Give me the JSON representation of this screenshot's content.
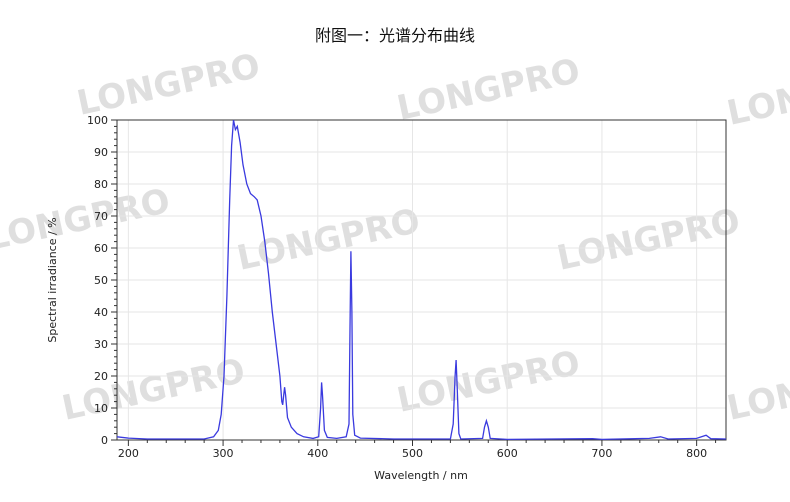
{
  "title": "附图一：光谱分布曲线",
  "watermark": "LONGPRO",
  "chart_data": {
    "type": "line",
    "title": "附图一：光谱分布曲线",
    "xlabel": "Wavelength / nm",
    "ylabel": "Spectral irradiance / %",
    "xlim": [
      188,
      831
    ],
    "ylim": [
      0,
      100
    ],
    "xticks": [
      200,
      300,
      400,
      500,
      600,
      700,
      800
    ],
    "yticks": [
      0,
      10,
      20,
      30,
      40,
      50,
      60,
      70,
      80,
      90,
      100
    ],
    "grid": true,
    "line_color": "#3a3adf",
    "series": [
      {
        "points": [
          [
            188,
            1
          ],
          [
            200,
            0.6
          ],
          [
            220,
            0.3
          ],
          [
            280,
            0.3
          ],
          [
            290,
            1
          ],
          [
            295,
            3
          ],
          [
            298,
            8
          ],
          [
            301,
            20
          ],
          [
            304,
            45
          ],
          [
            307,
            75
          ],
          [
            309,
            92
          ],
          [
            311,
            100
          ],
          [
            313,
            97
          ],
          [
            315,
            98
          ],
          [
            318,
            93
          ],
          [
            321,
            86
          ],
          [
            325,
            80
          ],
          [
            329,
            77
          ],
          [
            333,
            76
          ],
          [
            336,
            75
          ],
          [
            340,
            70
          ],
          [
            344,
            62
          ],
          [
            348,
            52
          ],
          [
            352,
            40
          ],
          [
            356,
            30
          ],
          [
            360,
            20
          ],
          [
            362,
            12
          ],
          [
            363,
            11
          ],
          [
            364,
            14
          ],
          [
            365,
            16.5
          ],
          [
            366,
            14
          ],
          [
            368,
            7
          ],
          [
            372,
            4
          ],
          [
            378,
            2
          ],
          [
            385,
            1
          ],
          [
            395,
            0.5
          ],
          [
            401,
            1
          ],
          [
            403,
            10
          ],
          [
            404,
            18
          ],
          [
            405,
            14
          ],
          [
            407,
            3
          ],
          [
            410,
            0.8
          ],
          [
            420,
            0.5
          ],
          [
            430,
            1
          ],
          [
            433,
            5
          ],
          [
            434,
            35
          ],
          [
            435,
            59
          ],
          [
            436,
            40
          ],
          [
            437,
            8
          ],
          [
            439,
            1.5
          ],
          [
            445,
            0.6
          ],
          [
            480,
            0.3
          ],
          [
            540,
            0.3
          ],
          [
            543,
            5
          ],
          [
            545,
            20
          ],
          [
            546,
            25
          ],
          [
            547,
            18
          ],
          [
            549,
            2
          ],
          [
            551,
            0.3
          ],
          [
            574,
            0.5
          ],
          [
            576,
            4
          ],
          [
            578,
            6
          ],
          [
            580,
            4
          ],
          [
            582,
            0.5
          ],
          [
            600,
            0.2
          ],
          [
            690,
            0.4
          ],
          [
            700,
            0.2
          ],
          [
            750,
            0.5
          ],
          [
            762,
            1
          ],
          [
            770,
            0.3
          ],
          [
            800,
            0.5
          ],
          [
            810,
            1.5
          ],
          [
            815,
            0.4
          ],
          [
            831,
            0.3
          ]
        ]
      }
    ]
  }
}
